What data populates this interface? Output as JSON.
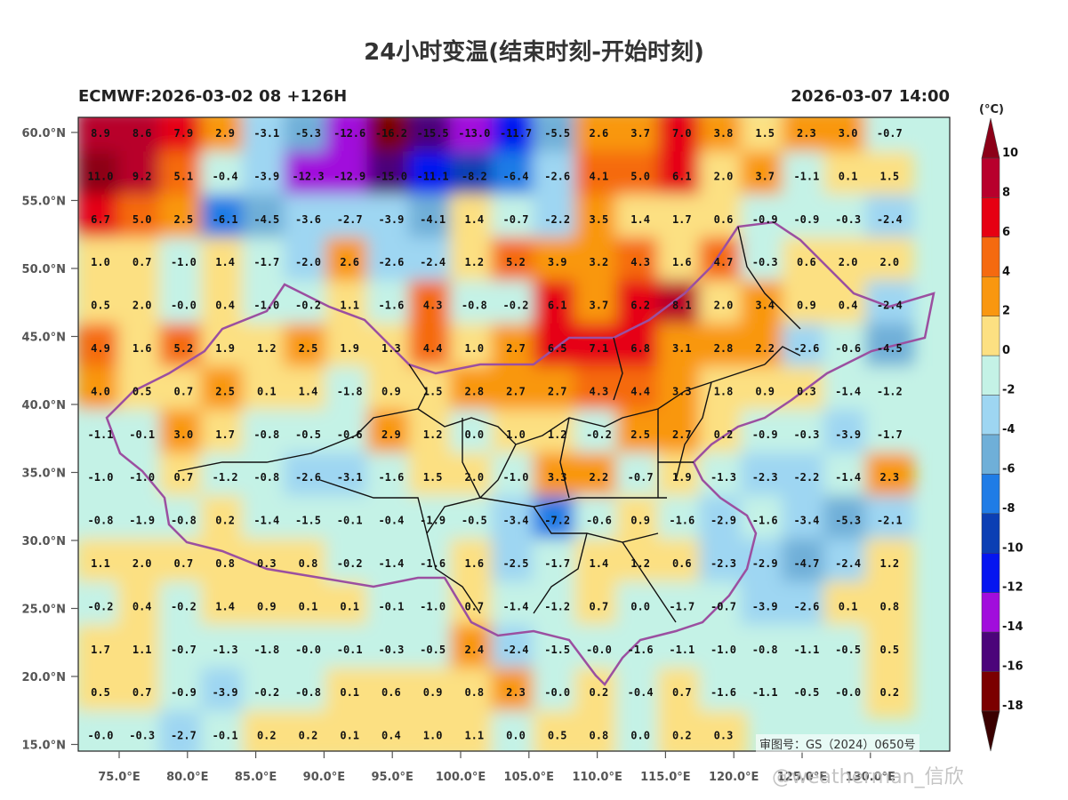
{
  "title": "24小时变温(结束时刻-开始时刻)",
  "model_run": "ECMWF:2026-03-02 08 +126H",
  "valid_time": "2026-03-07 14:00",
  "colorbar": {
    "unit": "(°C)",
    "labels": [
      "10",
      "8",
      "6",
      "4",
      "2",
      "0",
      "-2",
      "-4",
      "-6",
      "-8",
      "-10",
      "-12",
      "-14",
      "-16",
      "-18"
    ],
    "colors": [
      "#b8002c",
      "#e60012",
      "#f56a10",
      "#f99710",
      "#fce082",
      "#c4f2e6",
      "#9ed6f2",
      "#6fafd8",
      "#1f7ce6",
      "#0b3fb4",
      "#0515f0",
      "#a10ddc",
      "#4b047a",
      "#7b0000"
    ],
    "top_color": "#8c0018",
    "bottom_color": "#3a0000"
  },
  "axes": {
    "lon_labels": [
      "75.0°E",
      "80.0°E",
      "85.0°E",
      "90.0°E",
      "95.0°E",
      "100.0°E",
      "105.0°E",
      "110.0°E",
      "115.0°E",
      "120.0°E",
      "125.0°E",
      "130.0°E"
    ],
    "lat_labels": [
      "60.0°N",
      "55.0°N",
      "50.0°N",
      "45.0°N",
      "40.0°N",
      "35.0°N",
      "30.0°N",
      "25.0°N",
      "20.0°N",
      "15.0°N"
    ]
  },
  "grid_values": [
    [
      "8.9",
      "8.6",
      "7.9",
      "2.9",
      "-3.1",
      "-5.3",
      "-12.6",
      "-16.2",
      "-15.5",
      "-13.0",
      "-11.7",
      "-5.5",
      "2.6",
      "3.7",
      "7.0",
      "3.8",
      "1.5",
      "2.3",
      "3.0",
      "-0.7"
    ],
    [
      "11.0",
      "9.2",
      "5.1",
      "-0.4",
      "-3.9",
      "-12.3",
      "-12.9",
      "-15.0",
      "-11.1",
      "-8.2",
      "-6.4",
      "-2.6",
      "4.1",
      "5.0",
      "6.1",
      "2.0",
      "3.7",
      "-1.1",
      "0.1",
      "1.5"
    ],
    [
      "6.7",
      "5.0",
      "2.5",
      "-6.1",
      "-4.5",
      "-3.6",
      "-2.7",
      "-3.9",
      "-4.1",
      "1.4",
      "-0.7",
      "-2.2",
      "3.5",
      "1.4",
      "1.7",
      "0.6",
      "-0.9",
      "-0.9",
      "-0.3",
      "-2.4"
    ],
    [
      "1.0",
      "0.7",
      "-1.0",
      "1.4",
      "-1.7",
      "-2.0",
      "2.6",
      "-2.6",
      "-2.4",
      "1.2",
      "5.2",
      "3.9",
      "3.2",
      "4.3",
      "1.6",
      "4.7",
      "-0.3",
      "0.6",
      "2.0",
      "2.0"
    ],
    [
      "0.5",
      "2.0",
      "-0.0",
      "0.4",
      "-1.0",
      "-0.2",
      "1.1",
      "-1.6",
      "4.3",
      "-0.8",
      "-0.2",
      "6.1",
      "3.7",
      "6.2",
      "8.1",
      "2.0",
      "3.4",
      "0.9",
      "0.4",
      "-2.4"
    ],
    [
      "4.9",
      "1.6",
      "5.2",
      "1.9",
      "1.2",
      "2.5",
      "1.9",
      "1.3",
      "4.4",
      "1.0",
      "2.7",
      "6.5",
      "7.1",
      "6.8",
      "3.1",
      "2.8",
      "2.2",
      "-2.6",
      "-0.6",
      "-4.5"
    ],
    [
      "4.0",
      "0.5",
      "0.7",
      "2.5",
      "0.1",
      "1.4",
      "-1.8",
      "0.9",
      "1.5",
      "2.8",
      "2.7",
      "2.7",
      "4.3",
      "4.4",
      "3.3",
      "1.8",
      "0.9",
      "0.3",
      "-1.4",
      "-1.2"
    ],
    [
      "-1.1",
      "-0.1",
      "3.0",
      "1.7",
      "-0.8",
      "-0.5",
      "-0.6",
      "2.9",
      "1.2",
      "0.0",
      "1.0",
      "1.2",
      "-0.2",
      "2.5",
      "2.7",
      "0.2",
      "-0.9",
      "-0.3",
      "-3.9",
      "-1.7"
    ],
    [
      "-1.0",
      "-1.0",
      "0.7",
      "-1.2",
      "-0.8",
      "-2.6",
      "-3.1",
      "-1.6",
      "1.5",
      "2.0",
      "-1.0",
      "3.3",
      "2.2",
      "-0.7",
      "1.9",
      "-1.3",
      "-2.3",
      "-2.2",
      "-1.4",
      "2.3"
    ],
    [
      "-0.8",
      "-1.9",
      "-0.8",
      "0.2",
      "-1.4",
      "-1.5",
      "-0.1",
      "-0.4",
      "-1.9",
      "-0.5",
      "-3.4",
      "-7.2",
      "-0.6",
      "0.9",
      "-1.6",
      "-2.9",
      "-1.6",
      "-3.4",
      "-5.3",
      "-2.1"
    ],
    [
      "1.1",
      "2.0",
      "0.7",
      "0.8",
      "0.3",
      "0.8",
      "-0.2",
      "-1.4",
      "-1.6",
      "1.6",
      "-2.5",
      "-1.7",
      "1.4",
      "1.2",
      "0.6",
      "-2.3",
      "-2.9",
      "-4.7",
      "-2.4",
      "1.2"
    ],
    [
      "-0.2",
      "0.4",
      "-0.2",
      "1.4",
      "0.9",
      "0.1",
      "0.1",
      "-0.1",
      "-1.0",
      "0.7",
      "-1.4",
      "-1.2",
      "0.7",
      "0.0",
      "-1.7",
      "-0.7",
      "-3.9",
      "-2.6",
      "0.1",
      "0.8"
    ],
    [
      "1.7",
      "1.1",
      "-0.7",
      "-1.3",
      "-1.8",
      "-0.0",
      "-0.1",
      "-0.3",
      "-0.5",
      "2.4",
      "-2.4",
      "-1.5",
      "-0.0",
      "-1.6",
      "-1.1",
      "-1.0",
      "-0.8",
      "-1.1",
      "-0.5",
      "0.5"
    ],
    [
      "0.5",
      "0.7",
      "-0.9",
      "-3.9",
      "-0.2",
      "-0.8",
      "0.1",
      "0.6",
      "0.9",
      "0.8",
      "2.3",
      "-0.0",
      "0.2",
      "-0.4",
      "0.7",
      "-1.6",
      "-1.1",
      "-0.5",
      "-0.0",
      "0.2"
    ],
    [
      "-0.0",
      "-0.3",
      "-2.7",
      "-0.1",
      "0.2",
      "0.2",
      "0.1",
      "0.4",
      "1.0",
      "1.1",
      "0.0",
      "0.5",
      "0.8",
      "0.0",
      "0.2",
      "0.3",
      "",
      "",
      "",
      ""
    ]
  ],
  "review_number": "审图号：GS（2024）0650号",
  "watermark": "@weatherman_信欣"
}
